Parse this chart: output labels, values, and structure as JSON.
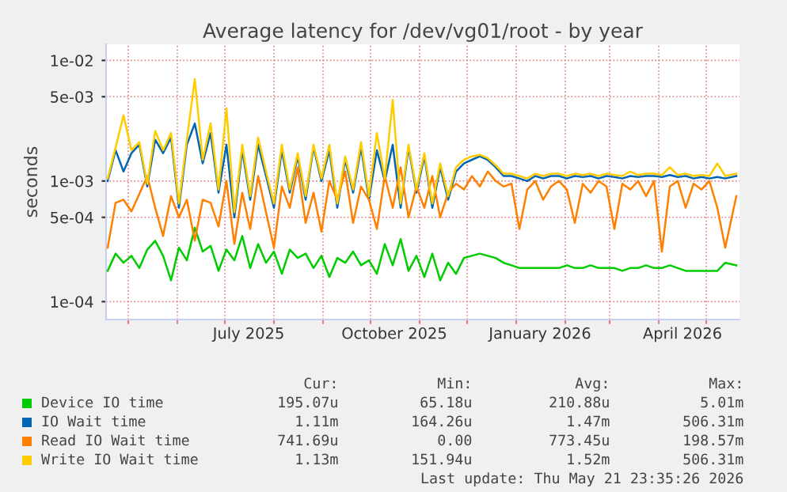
{
  "chart_data": {
    "type": "line",
    "title": "Average latency for /dev/vg01/root - by year",
    "ylabel": "seconds",
    "log": "y",
    "grid": true,
    "legend": "bottom",
    "line_style": "solid",
    "marker": "none",
    "xlim": [
      "2025-04-17",
      "2026-05-22"
    ],
    "xticks": [
      {
        "value": "2025-05-01",
        "label": null
      },
      {
        "value": "2025-06-01",
        "label": null
      },
      {
        "value": "2025-07-01",
        "label": null
      },
      {
        "value": "2025-07-16",
        "label": "July 2025"
      },
      {
        "value": "2025-08-01",
        "label": null
      },
      {
        "value": "2025-09-01",
        "label": null
      },
      {
        "value": "2025-10-01",
        "label": null
      },
      {
        "value": "2025-10-16",
        "label": "October 2025"
      },
      {
        "value": "2025-11-01",
        "label": null
      },
      {
        "value": "2025-12-01",
        "label": null
      },
      {
        "value": "2026-01-01",
        "label": null
      },
      {
        "value": "2026-01-16",
        "label": "January 2026"
      },
      {
        "value": "2026-02-01",
        "label": null
      },
      {
        "value": "2026-03-01",
        "label": null
      },
      {
        "value": "2026-04-01",
        "label": null
      },
      {
        "value": "2026-04-16",
        "label": "April 2026"
      },
      {
        "value": "2026-05-01",
        "label": null
      }
    ],
    "ylim": [
      7.1e-05,
      0.0136
    ],
    "yticks": [
      {
        "value": 0.0001,
        "label": "1e-04"
      },
      {
        "value": 0.0005,
        "label": "5e-04"
      },
      {
        "value": 0.001,
        "label": "1e-03"
      },
      {
        "value": 0.005,
        "label": "5e-03"
      },
      {
        "value": 0.01,
        "label": "1e-02"
      }
    ],
    "x": [
      "2025-04-18",
      "2025-04-23",
      "2025-04-28",
      "2025-05-03",
      "2025-05-08",
      "2025-05-13",
      "2025-05-18",
      "2025-05-23",
      "2025-05-28",
      "2025-06-02",
      "2025-06-07",
      "2025-06-12",
      "2025-06-17",
      "2025-06-22",
      "2025-06-27",
      "2025-07-02",
      "2025-07-07",
      "2025-07-12",
      "2025-07-17",
      "2025-07-22",
      "2025-07-27",
      "2025-08-01",
      "2025-08-06",
      "2025-08-11",
      "2025-08-16",
      "2025-08-21",
      "2025-08-26",
      "2025-08-31",
      "2025-09-05",
      "2025-09-10",
      "2025-09-15",
      "2025-09-20",
      "2025-09-25",
      "2025-09-30",
      "2025-10-05",
      "2025-10-10",
      "2025-10-15",
      "2025-10-20",
      "2025-10-25",
      "2025-10-30",
      "2025-11-04",
      "2025-11-09",
      "2025-11-14",
      "2025-11-19",
      "2025-11-24",
      "2025-11-29",
      "2025-12-04",
      "2025-12-09",
      "2025-12-14",
      "2025-12-19",
      "2025-12-24",
      "2025-12-29",
      "2026-01-03",
      "2026-01-08",
      "2026-01-13",
      "2026-01-18",
      "2026-01-23",
      "2026-01-28",
      "2026-02-02",
      "2026-02-07",
      "2026-02-12",
      "2026-02-17",
      "2026-02-22",
      "2026-02-27",
      "2026-03-04",
      "2026-03-09",
      "2026-03-14",
      "2026-03-19",
      "2026-03-24",
      "2026-03-29",
      "2026-04-03",
      "2026-04-08",
      "2026-04-13",
      "2026-04-18",
      "2026-04-23",
      "2026-04-28",
      "2026-05-03",
      "2026-05-08",
      "2026-05-13",
      "2026-05-20"
    ],
    "series": [
      {
        "name": "Device IO time",
        "color": "#00cc00",
        "values": [
          0.00018,
          0.00025,
          0.00021,
          0.00024,
          0.00019,
          0.00027,
          0.00032,
          0.00024,
          0.00015,
          0.00028,
          0.00022,
          0.00041,
          0.00026,
          0.00029,
          0.00018,
          0.00027,
          0.00022,
          0.00035,
          0.00019,
          0.0003,
          0.00021,
          0.00026,
          0.00017,
          0.00027,
          0.00023,
          0.00025,
          0.00019,
          0.00024,
          0.00016,
          0.00023,
          0.00021,
          0.00026,
          0.0002,
          0.00022,
          0.00017,
          0.0003,
          0.0002,
          0.00033,
          0.00018,
          0.00024,
          0.00016,
          0.00025,
          0.00015,
          0.00021,
          0.00017,
          0.00023,
          0.00024,
          0.00025,
          0.00024,
          0.00023,
          0.00021,
          0.0002,
          0.00019,
          0.00019,
          0.00019,
          0.00019,
          0.00019,
          0.00019,
          0.0002,
          0.00019,
          0.00019,
          0.0002,
          0.00019,
          0.00019,
          0.00019,
          0.00018,
          0.00019,
          0.00019,
          0.0002,
          0.00019,
          0.00019,
          0.0002,
          0.00019,
          0.00018,
          0.00018,
          0.00018,
          0.00018,
          0.00018,
          0.00021,
          0.0002
        ]
      },
      {
        "name": "IO Wait time",
        "color": "#0066b3",
        "values": [
          0.001,
          0.0018,
          0.0012,
          0.0017,
          0.002,
          0.0009,
          0.0022,
          0.0017,
          0.0023,
          0.0006,
          0.002,
          0.003,
          0.0014,
          0.0025,
          0.0008,
          0.002,
          0.0005,
          0.0018,
          0.0007,
          0.002,
          0.0011,
          0.0006,
          0.0018,
          0.0008,
          0.0016,
          0.0007,
          0.0019,
          0.001,
          0.0018,
          0.0006,
          0.0015,
          0.0008,
          0.0019,
          0.0007,
          0.0018,
          0.001,
          0.002,
          0.0006,
          0.0019,
          0.0008,
          0.0016,
          0.0006,
          0.0013,
          0.0007,
          0.0012,
          0.0014,
          0.0015,
          0.0016,
          0.0015,
          0.0013,
          0.0011,
          0.0011,
          0.00105,
          0.001,
          0.0011,
          0.00105,
          0.0011,
          0.0011,
          0.00105,
          0.0011,
          0.00108,
          0.0011,
          0.00105,
          0.0011,
          0.00108,
          0.00105,
          0.0011,
          0.00108,
          0.0011,
          0.0011,
          0.00108,
          0.00112,
          0.00108,
          0.0011,
          0.00105,
          0.00108,
          0.00105,
          0.00108,
          0.00105,
          0.0011
        ]
      },
      {
        "name": "Read IO Wait time",
        "color": "#ff8000",
        "values": [
          0.00028,
          0.00066,
          0.0007,
          0.00056,
          0.00078,
          0.0011,
          0.0006,
          0.00035,
          0.00075,
          0.0005,
          0.0007,
          0.00032,
          0.0007,
          0.00066,
          0.00042,
          0.001,
          0.0003,
          0.0008,
          0.0004,
          0.0011,
          0.00055,
          0.00028,
          0.0009,
          0.0006,
          0.0013,
          0.00045,
          0.0008,
          0.00038,
          0.001,
          0.0007,
          0.0012,
          0.00045,
          0.0009,
          0.0007,
          0.0004,
          0.0011,
          0.0006,
          0.0013,
          0.0005,
          0.0009,
          0.0006,
          0.0011,
          0.0005,
          0.0008,
          0.00095,
          0.00085,
          0.0011,
          0.0009,
          0.0012,
          0.001,
          0.0009,
          0.00095,
          0.0004,
          0.00085,
          0.001,
          0.0007,
          0.0009,
          0.001,
          0.00085,
          0.00045,
          0.00095,
          0.0008,
          0.001,
          0.0009,
          0.0004,
          0.00095,
          0.00085,
          0.001,
          0.00075,
          0.001,
          0.00026,
          0.0009,
          0.001,
          0.0006,
          0.00095,
          0.00085,
          0.001,
          0.0006,
          0.00028,
          0.00075
        ]
      },
      {
        "name": "Write IO Wait time",
        "color": "#ffcc00",
        "values": [
          0.00105,
          0.0019,
          0.0035,
          0.0018,
          0.0021,
          0.00095,
          0.0026,
          0.0018,
          0.0025,
          0.00065,
          0.0022,
          0.007,
          0.0015,
          0.003,
          0.00085,
          0.004,
          0.00055,
          0.002,
          0.00075,
          0.0023,
          0.0012,
          0.00065,
          0.002,
          0.00085,
          0.0017,
          0.00075,
          0.002,
          0.00105,
          0.002,
          0.00065,
          0.0016,
          0.00085,
          0.0021,
          0.00075,
          0.0025,
          0.00105,
          0.0047,
          0.00065,
          0.002,
          0.00085,
          0.0017,
          0.00065,
          0.0014,
          0.00075,
          0.0013,
          0.0015,
          0.0016,
          0.00165,
          0.00155,
          0.00135,
          0.00115,
          0.00115,
          0.0011,
          0.00105,
          0.00115,
          0.0011,
          0.00115,
          0.00115,
          0.0011,
          0.00115,
          0.00112,
          0.00115,
          0.0011,
          0.00115,
          0.00112,
          0.0011,
          0.0012,
          0.00112,
          0.00115,
          0.00115,
          0.00112,
          0.0013,
          0.00112,
          0.00115,
          0.0011,
          0.00112,
          0.0011,
          0.0014,
          0.0011,
          0.00115
        ]
      }
    ],
    "annotations": [
      "Cur:",
      "Min:",
      "Avg:",
      "Max:",
      "195.07u",
      "65.18u",
      "210.88u",
      "5.01m",
      "1.11m",
      "164.26u",
      "1.47m",
      "506.31m",
      "741.69u",
      "0.00",
      "773.45u",
      "198.57m",
      "1.13m",
      "151.94u",
      "1.52m",
      "506.31m",
      "Last update: Thu May 21 23:35:26 2026"
    ]
  }
}
